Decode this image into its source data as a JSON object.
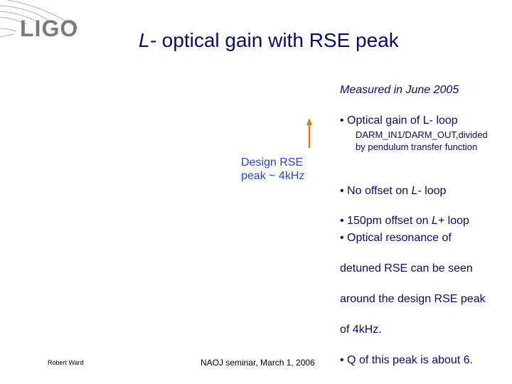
{
  "header": {
    "logo": "LIGO",
    "title_italic": "L-",
    "title": " optical gain with RSE peak"
  },
  "annotation": {
    "lines": [
      "Design RSE",
      "peak ~ 4kHz"
    ]
  },
  "notes": {
    "measured": "Measured in June 2005",
    "bullet1": "• Optical gain of L- loop",
    "sub": [
      "DARM_IN1/DARM_OUT,divided",
      "by pendulum transfer function"
    ],
    "offsets": [
      [
        "• No offset on ",
        "L-",
        " loop"
      ],
      [
        "• 150pm offset on ",
        "L+",
        " loop"
      ]
    ],
    "resonance": [
      "• Optical resonance of",
      "detuned RSE can be seen",
      "around the design RSE peak",
      "of 4kHz.",
      "• Q of this peak is about 6."
    ]
  },
  "footer": {
    "author": "Robert Ward",
    "event": "NAOJ seminar, March 1, 2006"
  }
}
